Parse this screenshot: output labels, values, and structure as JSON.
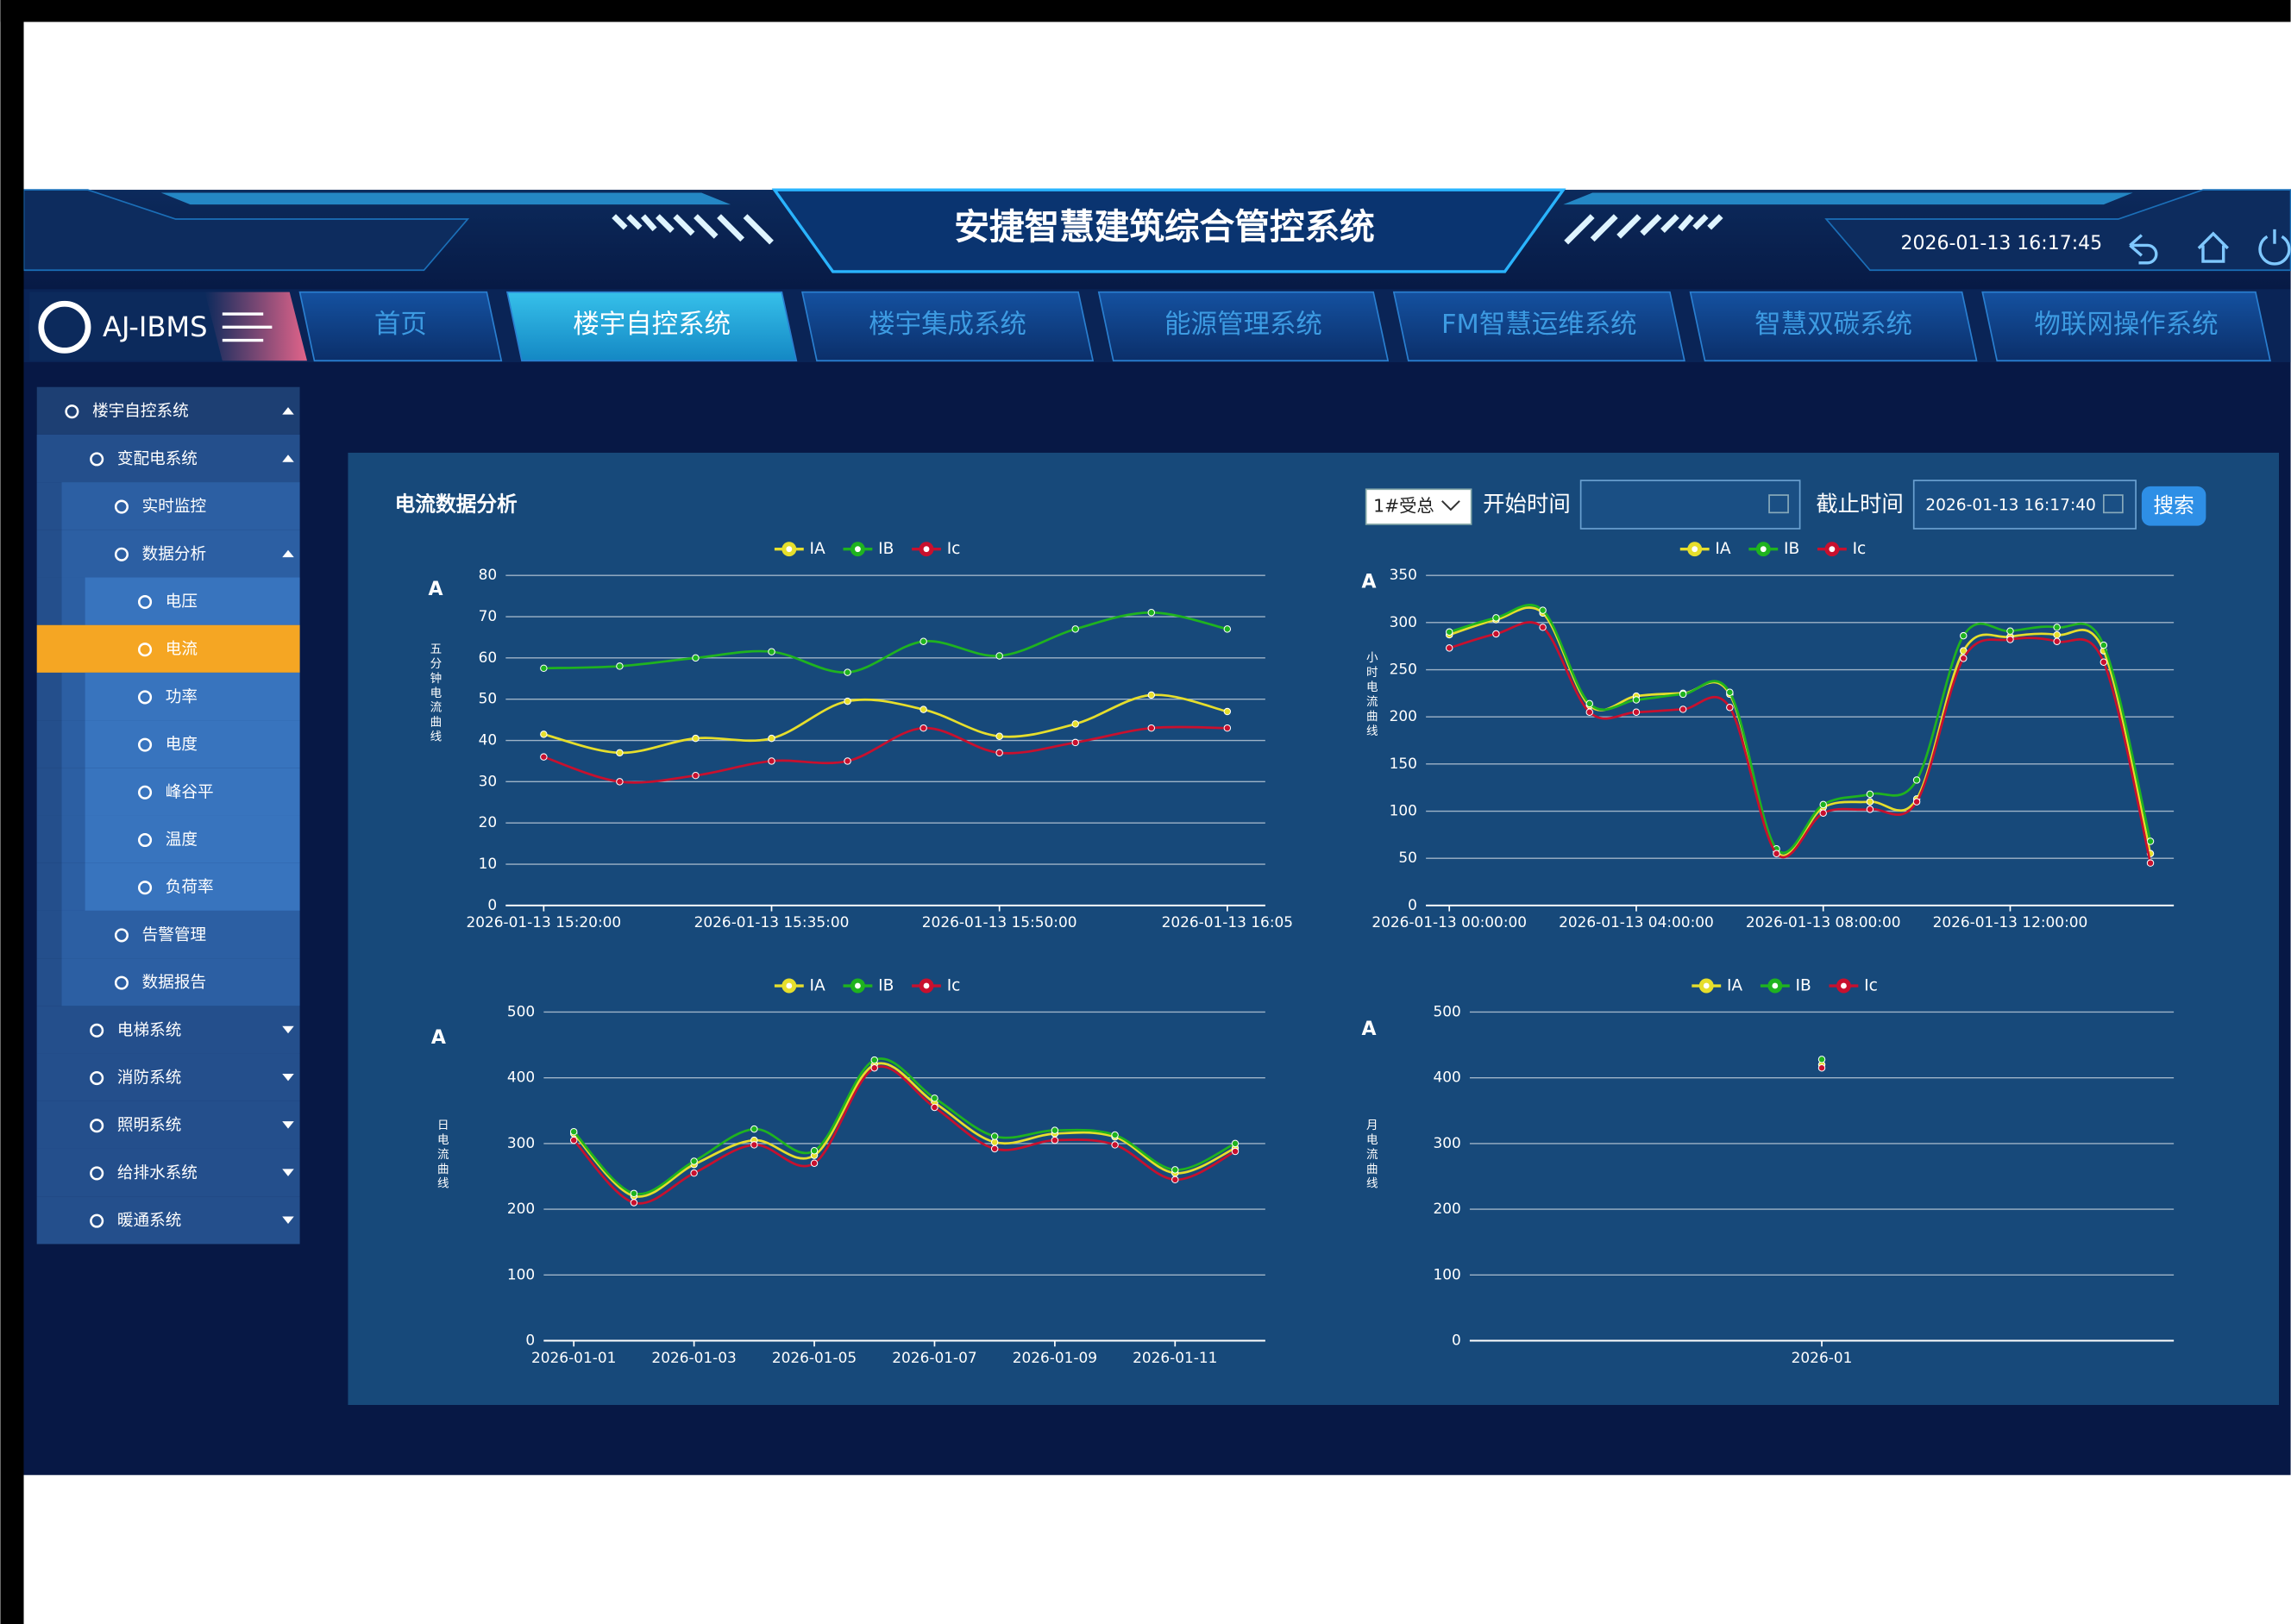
{
  "header": {
    "title": "安捷智慧建筑综合管控系统",
    "datetime": "2026-01-13 16:17:45",
    "logo": "AJ-IBMS"
  },
  "nav": {
    "tabs": [
      {
        "label": "首页"
      },
      {
        "label": "楼宇自控系统",
        "active": true
      },
      {
        "label": "楼宇集成系统"
      },
      {
        "label": "能源管理系统"
      },
      {
        "label": "FM智慧运维系统"
      },
      {
        "label": "智慧双碳系统"
      },
      {
        "label": "物联网操作系统"
      }
    ]
  },
  "sidebar": {
    "label": "楼宇自控系统",
    "expanded": true,
    "children": [
      {
        "label": "变配电系统",
        "expanded": true,
        "children": [
          {
            "label": "实时监控"
          },
          {
            "label": "数据分析",
            "expanded": true,
            "children": [
              {
                "label": "电压"
              },
              {
                "label": "电流",
                "active": true
              },
              {
                "label": "功率"
              },
              {
                "label": "电度"
              },
              {
                "label": "峰谷平"
              },
              {
                "label": "温度"
              },
              {
                "label": "负荷率"
              }
            ]
          },
          {
            "label": "告警管理"
          },
          {
            "label": "数据报告"
          }
        ]
      },
      {
        "label": "电梯系统",
        "expanded": false
      },
      {
        "label": "消防系统",
        "expanded": false
      },
      {
        "label": "照明系统",
        "expanded": false
      },
      {
        "label": "给排水系统",
        "expanded": false
      },
      {
        "label": "暖通系统",
        "expanded": false
      }
    ]
  },
  "panel": {
    "title": "电流数据分析",
    "controls": {
      "select": "1#受总",
      "start_label": "开始时间",
      "end_label": "截止时间",
      "end_value": "2026-01-13 16:17:40",
      "button": "搜索"
    }
  },
  "chart_data": [
    {
      "type": "line",
      "unit": "A",
      "y_label": "五分钟电流曲线",
      "legend": "top",
      "grid": true,
      "categories": [
        "2026-01-13 15:20:00",
        null,
        null,
        "2026-01-13 15:35:00",
        null,
        null,
        "2026-01-13 15:50:00",
        null,
        null,
        "2026-01-13 16:05"
      ],
      "series": [
        {
          "name": "IA",
          "color": "#e6de2c",
          "values": [
            41.5,
            37,
            40.5,
            40.5,
            49.5,
            47.5,
            41,
            44,
            51,
            47
          ]
        },
        {
          "name": "IB",
          "color": "#1fb31f",
          "values": [
            57.5,
            58,
            60,
            61.5,
            56.5,
            64,
            60.5,
            67,
            71,
            67
          ]
        },
        {
          "name": "Ic",
          "color": "#c8102e",
          "values": [
            36,
            30,
            31.5,
            35,
            35,
            43,
            37,
            39.5,
            43,
            43
          ]
        }
      ],
      "ylim": [
        0,
        80
      ],
      "yticks": [
        0,
        10,
        20,
        30,
        40,
        50,
        60,
        70,
        80
      ]
    },
    {
      "type": "line",
      "unit": "A",
      "y_label": "小时电流曲线",
      "legend": "top",
      "grid": true,
      "categories": [
        "2026-01-13 00:00:00",
        null,
        null,
        null,
        "2026-01-13 04:00:00",
        null,
        null,
        null,
        "2026-01-13 08:00:00",
        null,
        null,
        null,
        "2026-01-13 12:00:00",
        null,
        null,
        null
      ],
      "series": [
        {
          "name": "IA",
          "color": "#e6de2c",
          "values": [
            287,
            303,
            310,
            212,
            222,
            225,
            224,
            57,
            104,
            110,
            113,
            270,
            285,
            287,
            270,
            55
          ]
        },
        {
          "name": "IB",
          "color": "#1fb31f",
          "values": [
            290,
            305,
            313,
            214,
            218,
            224,
            226,
            60,
            107,
            118,
            133,
            286,
            291,
            295,
            276,
            68
          ]
        },
        {
          "name": "Ic",
          "color": "#c8102e",
          "values": [
            273,
            288,
            295,
            205,
            205,
            208,
            210,
            55,
            98,
            102,
            110,
            262,
            282,
            280,
            258,
            45
          ]
        }
      ],
      "ylim": [
        0,
        350
      ],
      "yticks": [
        0,
        50,
        100,
        150,
        200,
        250,
        300,
        350
      ]
    },
    {
      "type": "line",
      "unit": "A",
      "y_label": "日电流曲线",
      "legend": "top",
      "grid": true,
      "categories": [
        "2026-01-01",
        null,
        "2026-01-03",
        null,
        "2026-01-05",
        null,
        "2026-01-07",
        null,
        "2026-01-09",
        null,
        "2026-01-11",
        null
      ],
      "series": [
        {
          "name": "IA",
          "color": "#e6de2c",
          "values": [
            315,
            220,
            268,
            305,
            282,
            420,
            362,
            302,
            315,
            310,
            255,
            293
          ]
        },
        {
          "name": "IB",
          "color": "#1fb31f",
          "values": [
            318,
            224,
            273,
            322,
            289,
            427,
            369,
            311,
            320,
            313,
            260,
            300
          ]
        },
        {
          "name": "Ic",
          "color": "#c8102e",
          "values": [
            305,
            210,
            255,
            298,
            270,
            415,
            355,
            292,
            305,
            298,
            245,
            288
          ]
        }
      ],
      "ylim": [
        0,
        500
      ],
      "yticks": [
        0,
        100,
        200,
        300,
        400,
        500
      ]
    },
    {
      "type": "line",
      "unit": "A",
      "y_label": "月电流曲线",
      "legend": "top",
      "grid": true,
      "categories": [
        "2026-01"
      ],
      "series": [
        {
          "name": "IA",
          "color": "#e6de2c",
          "values": [
            420
          ]
        },
        {
          "name": "IB",
          "color": "#1fb31f",
          "values": [
            428
          ]
        },
        {
          "name": "Ic",
          "color": "#c8102e",
          "values": [
            415
          ]
        }
      ],
      "ylim": [
        0,
        500
      ],
      "yticks": [
        0,
        100,
        200,
        300,
        400,
        500
      ]
    }
  ]
}
